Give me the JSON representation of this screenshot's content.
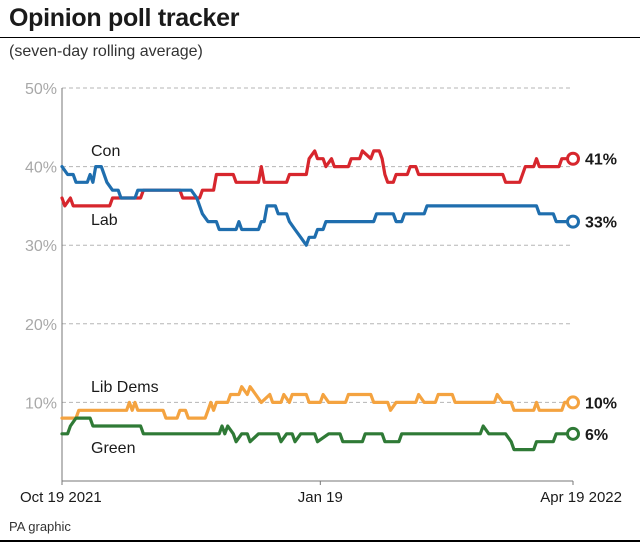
{
  "header": {
    "title": "Opinion poll tracker",
    "subtitle": "(seven-day rolling average)"
  },
  "footer": {
    "credit": "PA graphic"
  },
  "chart_data": {
    "type": "line",
    "title": "Opinion poll tracker",
    "subtitle": "(seven-day rolling average)",
    "ylim": [
      0,
      50
    ],
    "yticks": [
      10,
      20,
      30,
      40,
      50
    ],
    "ytick_labels": [
      "10%",
      "20%",
      "30%",
      "40%",
      "50%"
    ],
    "grid": true,
    "x_start": "2021-10-19",
    "x_end": "2022-04-19",
    "xtick_labels": [
      {
        "date": "2021-10-19",
        "label": "Oct 19 2021"
      },
      {
        "date": "2022-01-19",
        "label": "Jan 19"
      },
      {
        "date": "2022-04-19",
        "label": "Apr 19 2022"
      }
    ],
    "series": [
      {
        "name": "Con",
        "color": "#d7262d",
        "end_label": "41%",
        "points": [
          [
            "2021-10-19",
            36
          ],
          [
            "2021-10-20",
            35
          ],
          [
            "2021-10-22",
            36
          ],
          [
            "2021-10-23",
            35
          ],
          [
            "2021-11-05",
            35
          ],
          [
            "2021-11-06",
            36
          ],
          [
            "2021-11-16",
            36
          ],
          [
            "2021-11-17",
            37
          ],
          [
            "2021-11-30",
            37
          ],
          [
            "2021-12-01",
            36
          ],
          [
            "2021-12-07",
            36
          ],
          [
            "2021-12-08",
            37
          ],
          [
            "2021-12-12",
            37
          ],
          [
            "2021-12-13",
            39
          ],
          [
            "2021-12-19",
            39
          ],
          [
            "2021-12-20",
            38
          ],
          [
            "2021-12-28",
            38
          ],
          [
            "2021-12-29",
            40
          ],
          [
            "2021-12-30",
            38
          ],
          [
            "2022-01-07",
            38
          ],
          [
            "2022-01-08",
            39
          ],
          [
            "2022-01-14",
            39
          ],
          [
            "2022-01-15",
            41
          ],
          [
            "2022-01-17",
            42
          ],
          [
            "2022-01-18",
            41
          ],
          [
            "2022-01-20",
            41
          ],
          [
            "2022-01-21",
            40
          ],
          [
            "2022-01-23",
            41
          ],
          [
            "2022-01-24",
            40
          ],
          [
            "2022-01-29",
            40
          ],
          [
            "2022-01-30",
            41
          ],
          [
            "2022-02-02",
            41
          ],
          [
            "2022-02-03",
            42
          ],
          [
            "2022-02-06",
            41
          ],
          [
            "2022-02-07",
            42
          ],
          [
            "2022-02-09",
            42
          ],
          [
            "2022-02-10",
            41
          ],
          [
            "2022-02-11",
            39
          ],
          [
            "2022-02-12",
            38
          ],
          [
            "2022-02-14",
            38
          ],
          [
            "2022-02-15",
            39
          ],
          [
            "2022-02-19",
            39
          ],
          [
            "2022-02-20",
            40
          ],
          [
            "2022-02-22",
            40
          ],
          [
            "2022-02-23",
            39
          ],
          [
            "2022-03-25",
            39
          ],
          [
            "2022-03-26",
            38
          ],
          [
            "2022-03-31",
            38
          ],
          [
            "2022-04-01",
            39
          ],
          [
            "2022-04-02",
            40
          ],
          [
            "2022-04-05",
            40
          ],
          [
            "2022-04-06",
            41
          ],
          [
            "2022-04-07",
            40
          ],
          [
            "2022-04-14",
            40
          ],
          [
            "2022-04-15",
            41
          ],
          [
            "2022-04-19",
            41
          ]
        ]
      },
      {
        "name": "Lab",
        "color": "#1f6eae",
        "end_label": "33%",
        "points": [
          [
            "2021-10-19",
            40
          ],
          [
            "2021-10-21",
            39
          ],
          [
            "2021-10-23",
            39
          ],
          [
            "2021-10-24",
            38
          ],
          [
            "2021-10-28",
            38
          ],
          [
            "2021-10-29",
            39
          ],
          [
            "2021-10-30",
            38
          ],
          [
            "2021-10-31",
            40
          ],
          [
            "2021-11-02",
            40
          ],
          [
            "2021-11-04",
            38
          ],
          [
            "2021-11-06",
            37
          ],
          [
            "2021-11-08",
            37
          ],
          [
            "2021-11-09",
            36
          ],
          [
            "2021-11-14",
            36
          ],
          [
            "2021-11-15",
            37
          ],
          [
            "2021-12-04",
            37
          ],
          [
            "2021-12-06",
            36
          ],
          [
            "2021-12-08",
            34
          ],
          [
            "2021-12-10",
            33
          ],
          [
            "2021-12-13",
            33
          ],
          [
            "2021-12-14",
            32
          ],
          [
            "2021-12-20",
            32
          ],
          [
            "2021-12-21",
            33
          ],
          [
            "2021-12-22",
            32
          ],
          [
            "2021-12-28",
            32
          ],
          [
            "2021-12-29",
            33
          ],
          [
            "2021-12-30",
            33
          ],
          [
            "2021-12-31",
            35
          ],
          [
            "2022-01-03",
            35
          ],
          [
            "2022-01-04",
            34
          ],
          [
            "2022-01-07",
            34
          ],
          [
            "2022-01-08",
            33
          ],
          [
            "2022-01-10",
            32
          ],
          [
            "2022-01-12",
            31
          ],
          [
            "2022-01-14",
            30
          ],
          [
            "2022-01-15",
            31
          ],
          [
            "2022-01-17",
            31
          ],
          [
            "2022-01-18",
            32
          ],
          [
            "2022-01-20",
            32
          ],
          [
            "2022-01-21",
            33
          ],
          [
            "2022-02-07",
            33
          ],
          [
            "2022-02-08",
            34
          ],
          [
            "2022-02-14",
            34
          ],
          [
            "2022-02-15",
            33
          ],
          [
            "2022-02-17",
            33
          ],
          [
            "2022-02-18",
            34
          ],
          [
            "2022-02-25",
            34
          ],
          [
            "2022-02-26",
            35
          ],
          [
            "2022-04-06",
            35
          ],
          [
            "2022-04-07",
            34
          ],
          [
            "2022-04-12",
            34
          ],
          [
            "2022-04-13",
            33
          ],
          [
            "2022-04-19",
            33
          ]
        ]
      },
      {
        "name": "Lib Dems",
        "color": "#f4a340",
        "end_label": "10%",
        "points": [
          [
            "2021-10-19",
            8
          ],
          [
            "2021-10-24",
            8
          ],
          [
            "2021-10-25",
            9
          ],
          [
            "2021-11-11",
            9
          ],
          [
            "2021-11-12",
            10
          ],
          [
            "2021-11-13",
            9
          ],
          [
            "2021-11-14",
            10
          ],
          [
            "2021-11-15",
            9
          ],
          [
            "2021-11-24",
            9
          ],
          [
            "2021-11-25",
            8
          ],
          [
            "2021-11-29",
            8
          ],
          [
            "2021-11-30",
            9
          ],
          [
            "2021-12-02",
            9
          ],
          [
            "2021-12-03",
            8
          ],
          [
            "2021-12-09",
            8
          ],
          [
            "2021-12-10",
            9
          ],
          [
            "2021-12-11",
            10
          ],
          [
            "2021-12-12",
            9
          ],
          [
            "2021-12-13",
            10
          ],
          [
            "2021-12-17",
            10
          ],
          [
            "2021-12-18",
            11
          ],
          [
            "2021-12-21",
            11
          ],
          [
            "2021-12-22",
            12
          ],
          [
            "2021-12-24",
            11
          ],
          [
            "2021-12-25",
            12
          ],
          [
            "2021-12-27",
            11
          ],
          [
            "2021-12-29",
            10
          ],
          [
            "2022-01-01",
            11
          ],
          [
            "2022-01-02",
            10
          ],
          [
            "2022-01-05",
            10
          ],
          [
            "2022-01-06",
            11
          ],
          [
            "2022-01-08",
            10
          ],
          [
            "2022-01-09",
            11
          ],
          [
            "2022-01-14",
            11
          ],
          [
            "2022-01-15",
            10
          ],
          [
            "2022-01-19",
            10
          ],
          [
            "2022-01-20",
            11
          ],
          [
            "2022-01-22",
            10
          ],
          [
            "2022-01-28",
            10
          ],
          [
            "2022-01-29",
            11
          ],
          [
            "2022-02-06",
            11
          ],
          [
            "2022-02-07",
            10
          ],
          [
            "2022-02-12",
            10
          ],
          [
            "2022-02-13",
            9
          ],
          [
            "2022-02-15",
            10
          ],
          [
            "2022-02-22",
            10
          ],
          [
            "2022-02-23",
            11
          ],
          [
            "2022-02-25",
            10
          ],
          [
            "2022-03-01",
            10
          ],
          [
            "2022-03-02",
            11
          ],
          [
            "2022-03-07",
            11
          ],
          [
            "2022-03-08",
            10
          ],
          [
            "2022-03-22",
            10
          ],
          [
            "2022-03-23",
            11
          ],
          [
            "2022-03-25",
            10
          ],
          [
            "2022-03-28",
            10
          ],
          [
            "2022-03-29",
            9
          ],
          [
            "2022-04-05",
            9
          ],
          [
            "2022-04-06",
            10
          ],
          [
            "2022-04-07",
            9
          ],
          [
            "2022-04-15",
            9
          ],
          [
            "2022-04-16",
            10
          ],
          [
            "2022-04-19",
            10
          ]
        ]
      },
      {
        "name": "Green",
        "color": "#2f7a36",
        "end_label": "6%",
        "points": [
          [
            "2021-10-19",
            6
          ],
          [
            "2021-10-21",
            6
          ],
          [
            "2021-10-22",
            7
          ],
          [
            "2021-10-24",
            8
          ],
          [
            "2021-10-29",
            8
          ],
          [
            "2021-10-30",
            7
          ],
          [
            "2021-11-16",
            7
          ],
          [
            "2021-11-17",
            6
          ],
          [
            "2021-12-14",
            6
          ],
          [
            "2021-12-15",
            7
          ],
          [
            "2021-12-16",
            6
          ],
          [
            "2021-12-17",
            7
          ],
          [
            "2021-12-19",
            6
          ],
          [
            "2021-12-20",
            5
          ],
          [
            "2021-12-22",
            6
          ],
          [
            "2021-12-24",
            6
          ],
          [
            "2021-12-25",
            5
          ],
          [
            "2021-12-28",
            6
          ],
          [
            "2022-01-04",
            6
          ],
          [
            "2022-01-05",
            5
          ],
          [
            "2022-01-07",
            6
          ],
          [
            "2022-01-09",
            6
          ],
          [
            "2022-01-10",
            5
          ],
          [
            "2022-01-12",
            6
          ],
          [
            "2022-01-17",
            6
          ],
          [
            "2022-01-18",
            5
          ],
          [
            "2022-01-22",
            6
          ],
          [
            "2022-01-26",
            6
          ],
          [
            "2022-01-27",
            5
          ],
          [
            "2022-02-03",
            5
          ],
          [
            "2022-02-04",
            6
          ],
          [
            "2022-02-10",
            6
          ],
          [
            "2022-02-11",
            5
          ],
          [
            "2022-02-16",
            5
          ],
          [
            "2022-02-17",
            6
          ],
          [
            "2022-03-17",
            6
          ],
          [
            "2022-03-18",
            7
          ],
          [
            "2022-03-20",
            6
          ],
          [
            "2022-03-26",
            6
          ],
          [
            "2022-03-28",
            5
          ],
          [
            "2022-03-29",
            4
          ],
          [
            "2022-04-05",
            4
          ],
          [
            "2022-04-06",
            5
          ],
          [
            "2022-04-12",
            5
          ],
          [
            "2022-04-13",
            6
          ],
          [
            "2022-04-19",
            6
          ]
        ]
      }
    ],
    "series_labels": [
      {
        "series": "Con",
        "text": "Con"
      },
      {
        "series": "Lab",
        "text": "Lab"
      },
      {
        "series": "Lib Dems",
        "text": "Lib Dems"
      },
      {
        "series": "Green",
        "text": "Green"
      }
    ]
  }
}
